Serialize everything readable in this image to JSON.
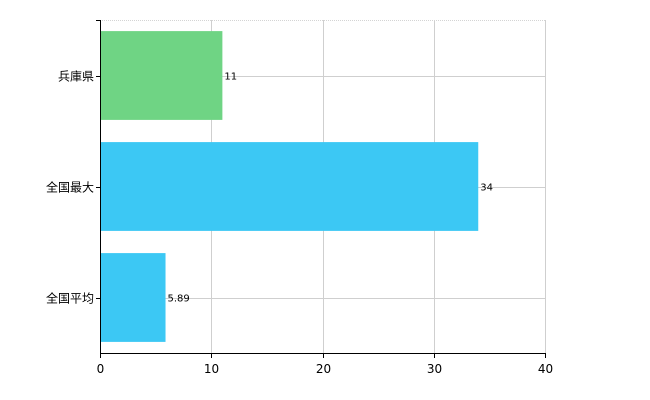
{
  "chart_data": {
    "type": "bar",
    "orientation": "horizontal",
    "categories": [
      "兵庫県",
      "全国最大",
      "全国平均"
    ],
    "values": [
      11,
      34,
      5.89
    ],
    "value_labels": [
      "11",
      "34",
      "5.89"
    ],
    "colors": [
      "#6fd484",
      "#3cc8f4",
      "#3cc8f4"
    ],
    "xlim": [
      0,
      40
    ],
    "xticks": [
      0,
      10,
      20,
      30,
      40
    ],
    "xtick_labels": [
      "0",
      "10",
      "20",
      "30",
      "40"
    ],
    "grid": true,
    "legend": "none",
    "title": "",
    "xlabel": "",
    "ylabel": ""
  }
}
